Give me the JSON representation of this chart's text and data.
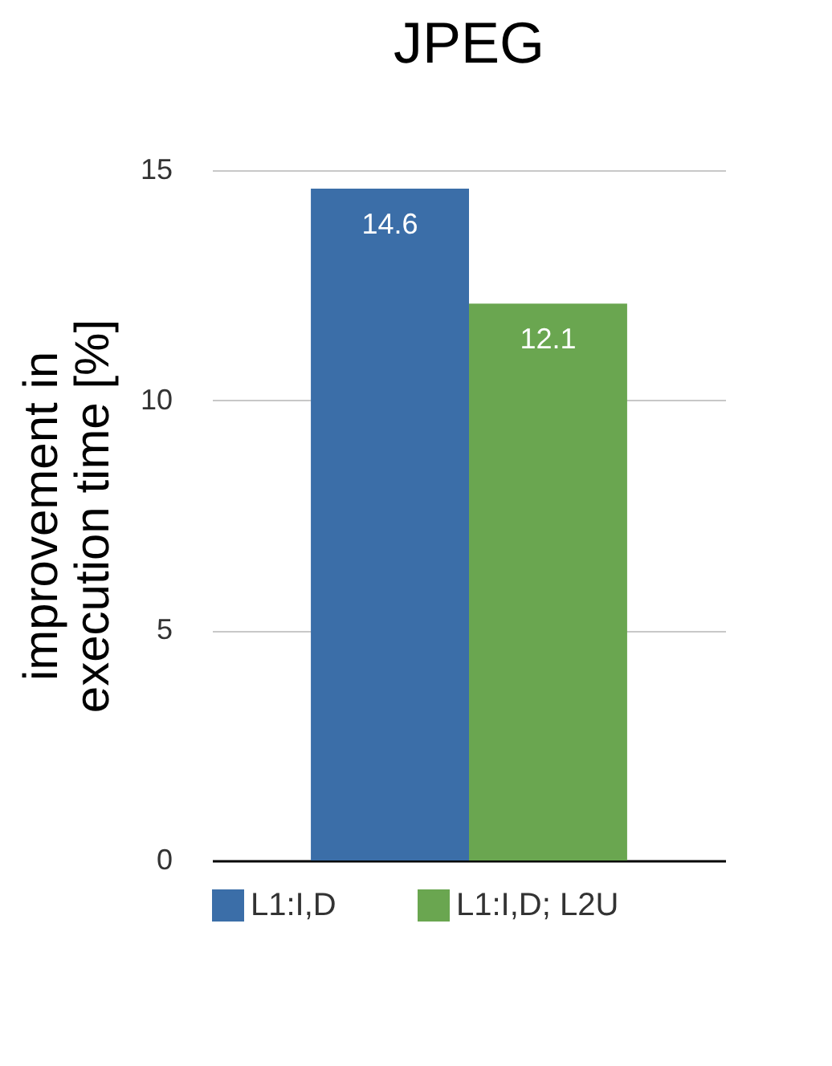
{
  "chart_data": {
    "type": "bar",
    "title": "JPEG",
    "ylabel": "improvement in execution time [%]",
    "categories": [
      null
    ],
    "series": [
      {
        "name": "L1:I,D",
        "color": "#3b6ea8",
        "values": [
          14.6
        ]
      },
      {
        "name": "L1:I,D; L2U",
        "color": "#6aa650",
        "values": [
          12.1
        ]
      }
    ],
    "ylim": [
      0,
      15
    ],
    "yticks": [
      0,
      5,
      10,
      15
    ],
    "grid": "y",
    "legend": "bottom",
    "data_labels": true
  }
}
